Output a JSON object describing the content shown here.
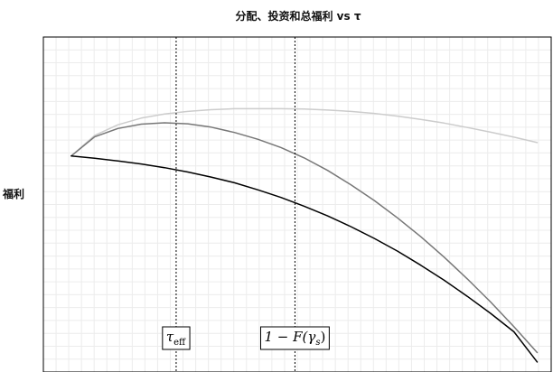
{
  "chart_data": {
    "type": "line",
    "title": "分配、投资和总福利 vs τ",
    "xlabel": "",
    "ylabel": "福利",
    "xlim": [
      -0.06,
      1.03
    ],
    "ylim": [
      0.0,
      1.0
    ],
    "grid": true,
    "legend": "none",
    "x": [
      0,
      0.05,
      0.1,
      0.15,
      0.2,
      0.25,
      0.3,
      0.35,
      0.4,
      0.45,
      0.5,
      0.55,
      0.6,
      0.65,
      0.7,
      0.75,
      0.8,
      0.85,
      0.9,
      0.95,
      1.0
    ],
    "series": [
      {
        "color": "#cccccc",
        "values": [
          0.645,
          0.706,
          0.738,
          0.758,
          0.77,
          0.778,
          0.783,
          0.786,
          0.786,
          0.786,
          0.785,
          0.782,
          0.778,
          0.772,
          0.764,
          0.754,
          0.743,
          0.73,
          0.716,
          0.701,
          0.685
        ]
      },
      {
        "color": "#777777",
        "values": [
          0.645,
          0.702,
          0.727,
          0.74,
          0.744,
          0.741,
          0.731,
          0.715,
          0.695,
          0.67,
          0.639,
          0.602,
          0.559,
          0.512,
          0.46,
          0.404,
          0.343,
          0.278,
          0.209,
          0.135,
          0.058
        ]
      },
      {
        "color": "#000000",
        "values": [
          0.645,
          0.638,
          0.63,
          0.621,
          0.61,
          0.597,
          0.582,
          0.565,
          0.544,
          0.521,
          0.495,
          0.466,
          0.434,
          0.399,
          0.361,
          0.319,
          0.274,
          0.226,
          0.175,
          0.12,
          0.03
        ]
      }
    ],
    "vlines": [
      {
        "x": 0.225,
        "style": "dotted",
        "label": "τ",
        "label_sub": "eff"
      },
      {
        "x": 0.48,
        "style": "dotted",
        "label": "1 − F(γ",
        "label_sub": "s",
        "label_end": ")"
      }
    ]
  }
}
